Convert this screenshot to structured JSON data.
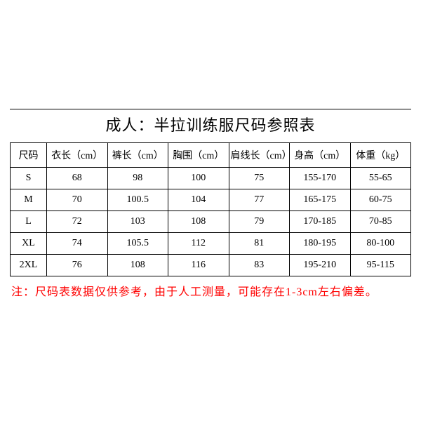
{
  "title": "成人：半拉训练服尺码参照表",
  "columns": [
    "尺码",
    "衣长（cm）",
    "裤长（cm）",
    "胸围（cm）",
    "肩线长（cm）",
    "身高（cm）",
    "体重（kg）"
  ],
  "rows": [
    [
      "S",
      "68",
      "98",
      "100",
      "75",
      "155-170",
      "55-65"
    ],
    [
      "M",
      "70",
      "100.5",
      "104",
      "77",
      "165-175",
      "60-75"
    ],
    [
      "L",
      "72",
      "103",
      "108",
      "79",
      "170-185",
      "70-85"
    ],
    [
      "XL",
      "74",
      "105.5",
      "112",
      "81",
      "180-195",
      "80-100"
    ],
    [
      "2XL",
      "76",
      "108",
      "116",
      "83",
      "195-210",
      "95-115"
    ]
  ],
  "note": "注：尺码表数据仅供参考，由于人工测量，可能存在1-3cm左右偏差。",
  "style": {
    "type": "table",
    "background_color": "#ffffff",
    "border_color": "#000000",
    "text_color": "#000000",
    "note_color": "#ff0000",
    "title_fontsize": 22,
    "cell_fontsize": 14,
    "note_fontsize": 16,
    "font_family": "SimSun"
  }
}
